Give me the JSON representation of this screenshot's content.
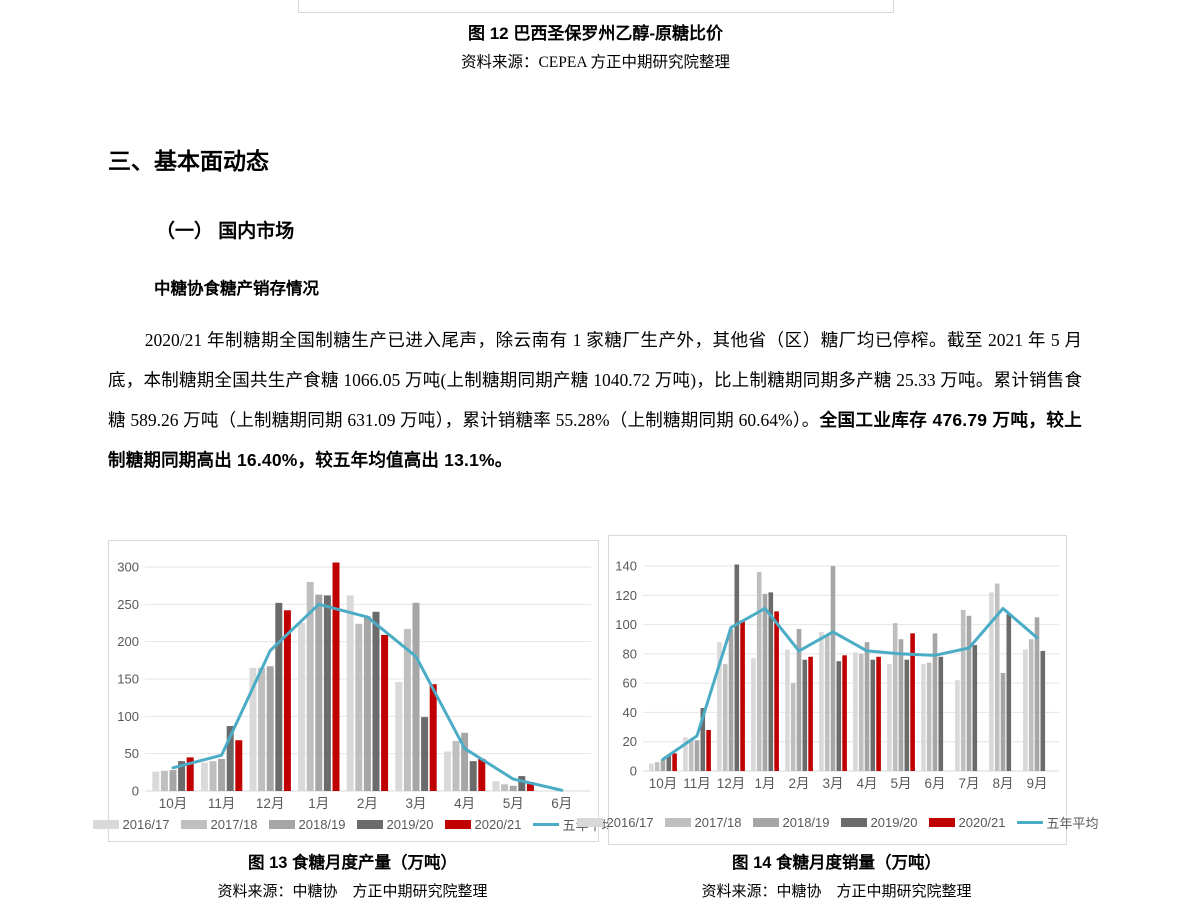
{
  "figure12": {
    "caption": "图 12  巴西圣保罗州乙醇-原糖比价",
    "source": "资料来源：CEPEA  方正中期研究院整理"
  },
  "headings": {
    "section": "三、基本面动态",
    "subsection": "（一）  国内市场",
    "minor": "中糖协食糖产销存情况"
  },
  "paragraph": {
    "normal": "2020/21 年制糖期全国制糖生产已进入尾声，除云南有 1 家糖厂生产外，其他省（区）糖厂均已停榨。截至 2021 年 5 月底，本制糖期全国共生产食糖 1066.05 万吨(上制糖期同期产糖 1040.72 万吨)，比上制糖期同期多产糖 25.33 万吨。累计销售食糖 589.26 万吨（上制糖期同期 631.09 万吨），累计销糖率 55.28%（上制糖期同期 60.64%）。",
    "bold": "全国工业库存 476.79 万吨，较上制糖期同期高出 16.40%，较五年均值高出 13.1%。"
  },
  "figure13": {
    "caption": "图 13  食糖月度产量（万吨）",
    "source": "资料来源：中糖协　方正中期研究院整理"
  },
  "figure14": {
    "caption": "图 14  食糖月度销量（万吨）",
    "source": "资料来源：中糖协　方正中期研究院整理"
  },
  "colors": {
    "series_2016_17": "#d9d9d9",
    "series_2017_18": "#bfbfbf",
    "series_2018_19": "#a6a6a6",
    "series_2019_20": "#6b6b6b",
    "series_2020_21": "#c00000",
    "average_line": "#4bacc6",
    "axis_text": "#595959",
    "gridline": "#e4e4e4",
    "box_border": "#d9d9d9"
  },
  "chart_data": [
    {
      "id": "figure13-chart",
      "type": "bar",
      "title": "图 13 食糖月度产量（万吨）",
      "xlabel": "",
      "ylabel": "",
      "ylim": [
        0,
        300
      ],
      "ytick_step": 50,
      "grid": true,
      "legend_position": "bottom",
      "categories": [
        "10月",
        "11月",
        "12月",
        "1月",
        "2月",
        "3月",
        "4月",
        "5月",
        "6月"
      ],
      "series": [
        {
          "name": "2016/17",
          "type": "bar",
          "color": "#d9d9d9",
          "values": [
            26,
            38,
            165,
            225,
            262,
            146,
            53,
            13,
            null
          ]
        },
        {
          "name": "2017/18",
          "type": "bar",
          "color": "#bfbfbf",
          "values": [
            27,
            40,
            165,
            280,
            224,
            217,
            67,
            9,
            null
          ]
        },
        {
          "name": "2018/19",
          "type": "bar",
          "color": "#a6a6a6",
          "values": [
            28,
            43,
            167,
            263,
            234,
            252,
            78,
            7,
            null
          ]
        },
        {
          "name": "2019/20",
          "type": "bar",
          "color": "#6b6b6b",
          "values": [
            40,
            87,
            252,
            262,
            240,
            99,
            40,
            20,
            null
          ]
        },
        {
          "name": "2020/21",
          "type": "bar",
          "color": "#c00000",
          "values": [
            45,
            68,
            242,
            306,
            209,
            143,
            43,
            12,
            null
          ]
        },
        {
          "name": "五年平均",
          "type": "line",
          "color": "#4bacc6",
          "values": [
            31,
            48,
            188,
            250,
            233,
            180,
            57,
            16,
            1
          ]
        }
      ]
    },
    {
      "id": "figure14-chart",
      "type": "bar",
      "title": "图 14 食糖月度销量（万吨）",
      "xlabel": "",
      "ylabel": "",
      "ylim": [
        0,
        140
      ],
      "ytick_step": 20,
      "grid": true,
      "legend_position": "bottom",
      "categories": [
        "10月",
        "11月",
        "12月",
        "1月",
        "2月",
        "3月",
        "4月",
        "5月",
        "6月",
        "7月",
        "8月",
        "9月"
      ],
      "series": [
        {
          "name": "2016/17",
          "type": "bar",
          "color": "#d9d9d9",
          "values": [
            5,
            23,
            88,
            77,
            83,
            95,
            81,
            73,
            73,
            62,
            122,
            83
          ]
        },
        {
          "name": "2017/18",
          "type": "bar",
          "color": "#bfbfbf",
          "values": [
            6,
            22,
            73,
            136,
            60,
            93,
            80,
            101,
            74,
            110,
            128,
            90
          ]
        },
        {
          "name": "2018/19",
          "type": "bar",
          "color": "#a6a6a6",
          "values": [
            8,
            21,
            97,
            121,
            97,
            140,
            88,
            90,
            94,
            106,
            67,
            105
          ]
        },
        {
          "name": "2019/20",
          "type": "bar",
          "color": "#6b6b6b",
          "values": [
            11,
            43,
            141,
            122,
            76,
            75,
            76,
            76,
            78,
            86,
            107,
            82
          ]
        },
        {
          "name": "2020/21",
          "type": "bar",
          "color": "#c00000",
          "values": [
            12,
            28,
            103,
            109,
            78,
            79,
            78,
            94,
            null,
            null,
            null,
            null
          ]
        },
        {
          "name": "五年平均",
          "type": "line",
          "color": "#4bacc6",
          "values": [
            8,
            24,
            98,
            111,
            82,
            95,
            82,
            80,
            79,
            84,
            111,
            91
          ]
        }
      ]
    }
  ]
}
